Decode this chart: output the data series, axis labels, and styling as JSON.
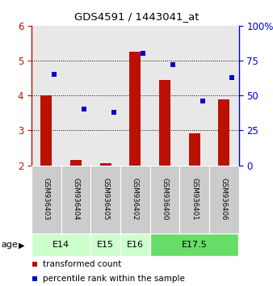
{
  "title": "GDS4591 / 1443041_at",
  "samples": [
    "GSM936403",
    "GSM936404",
    "GSM936405",
    "GSM936402",
    "GSM936400",
    "GSM936401",
    "GSM936406"
  ],
  "red_values": [
    4.0,
    2.15,
    2.05,
    5.25,
    4.45,
    2.92,
    3.9
  ],
  "blue_values": [
    65,
    40,
    38,
    80,
    72,
    46,
    63
  ],
  "blue_ylim": [
    0,
    100
  ],
  "red_ylim": [
    2,
    6
  ],
  "red_yticks": [
    2,
    3,
    4,
    5,
    6
  ],
  "blue_yticks": [
    0,
    25,
    50,
    75,
    100
  ],
  "age_spans": [
    {
      "label": "E14",
      "start": 0,
      "end": 2,
      "color": "#ccffcc"
    },
    {
      "label": "E15",
      "start": 2,
      "end": 3,
      "color": "#ccffcc"
    },
    {
      "label": "E16",
      "start": 3,
      "end": 4,
      "color": "#ccffcc"
    },
    {
      "label": "E17.5",
      "start": 4,
      "end": 7,
      "color": "#66dd66"
    }
  ],
  "bar_color": "#bb1100",
  "dot_color": "#0000cc",
  "sample_bg": "#cccccc",
  "legend_red_label": "transformed count",
  "legend_blue_label": "percentile rank within the sample",
  "grid_dotted_at": [
    3,
    4,
    5
  ]
}
